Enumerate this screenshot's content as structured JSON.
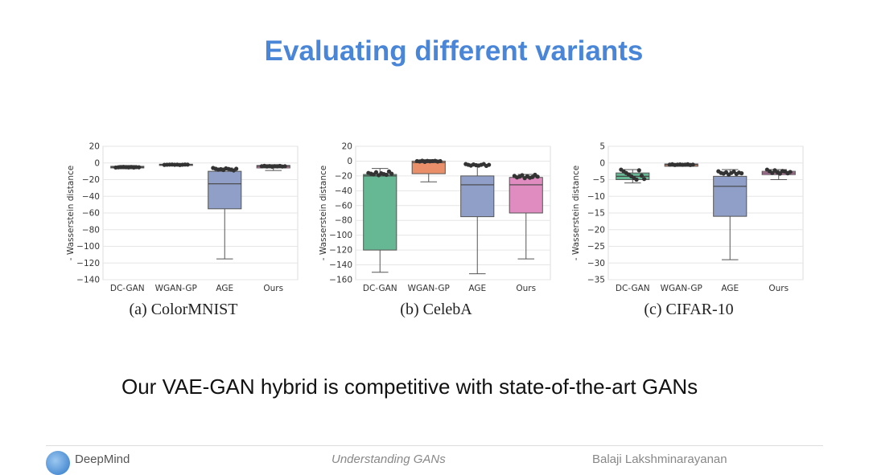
{
  "slide": {
    "title": "Evaluating different variants",
    "tagline": "Our VAE-GAN hybrid is competitive with state-of-the-art GANs",
    "footer": {
      "organization": "DeepMind",
      "talk_title": "Understanding GANs",
      "author": "Balaji Lakshminarayanan"
    }
  },
  "colors": {
    "title": "#4a86d8",
    "DC-GAN": "#66b894",
    "WGAN-GP": "#e9906a",
    "AGE": "#8f9fc7",
    "Ours": "#e08cc0"
  },
  "chart_data": [
    {
      "type": "boxplot",
      "caption": "(a) ColorMNIST",
      "ylabel": "- Wasserstein distance",
      "categories": [
        "DC-GAN",
        "WGAN-GP",
        "AGE",
        "Ours"
      ],
      "ylim": [
        -140,
        20
      ],
      "yticks": [
        20,
        0,
        -20,
        -40,
        -60,
        -80,
        -100,
        -120,
        -140
      ],
      "grid": true,
      "boxes": [
        {
          "name": "DC-GAN",
          "q1": -6,
          "median": -5,
          "q3": -4,
          "whisker_low": -7,
          "whisker_high": -3,
          "points": [
            -5.5,
            -5.2,
            -5,
            -4.8,
            -5.1,
            -5.3,
            -4.9,
            -5.4,
            -5,
            -5.2
          ]
        },
        {
          "name": "WGAN-GP",
          "q1": -3,
          "median": -2,
          "q3": -1.5,
          "whisker_low": -3.5,
          "whisker_high": -1,
          "points": [
            -2.3,
            -2.1,
            -2,
            -1.9,
            -2.2,
            -2,
            -2.4,
            -2.1,
            -1.9,
            -2
          ]
        },
        {
          "name": "AGE",
          "q1": -55,
          "median": -25,
          "q3": -10,
          "whisker_low": -115,
          "whisker_high": -6,
          "points": [
            -6,
            -7,
            -8,
            -7.5,
            -8.5,
            -6.5,
            -7.2,
            -8,
            -9,
            -7
          ]
        },
        {
          "name": "Ours",
          "q1": -6,
          "median": -4,
          "q3": -3,
          "whisker_low": -9,
          "whisker_high": -2,
          "points": [
            -4,
            -3.5,
            -4.2,
            -3.8,
            -4.5,
            -3.9,
            -4.1,
            -3.6,
            -4.3,
            -4
          ]
        }
      ]
    },
    {
      "type": "boxplot",
      "caption": "(b) CelebA",
      "ylabel": "- Wasserstein distance",
      "categories": [
        "DC-GAN",
        "WGAN-GP",
        "AGE",
        "Ours"
      ],
      "ylim": [
        -160,
        20
      ],
      "yticks": [
        20,
        0,
        -20,
        -40,
        -60,
        -80,
        -100,
        -120,
        -140,
        -160
      ],
      "grid": true,
      "boxes": [
        {
          "name": "DC-GAN",
          "q1": -120,
          "median": -20,
          "q3": -18,
          "whisker_low": -150,
          "whisker_high": -10,
          "points": [
            -16,
            -17,
            -18,
            -15,
            -19,
            -16.5,
            -17.5,
            -18.5,
            -14,
            -17
          ]
        },
        {
          "name": "WGAN-GP",
          "q1": -17,
          "median": -2,
          "q3": 0,
          "whisker_low": -28,
          "whisker_high": 2,
          "points": [
            0,
            -0.5,
            0.5,
            -1,
            0.2,
            -0.3,
            0,
            0.4,
            -0.6,
            0
          ]
        },
        {
          "name": "AGE",
          "q1": -75,
          "median": -32,
          "q3": -20,
          "whisker_low": -152,
          "whisker_high": -4,
          "points": [
            -4,
            -5,
            -6,
            -4.5,
            -5.5,
            -6,
            -5,
            -4,
            -6.5,
            -5
          ]
        },
        {
          "name": "Ours",
          "q1": -70,
          "median": -32,
          "q3": -22,
          "whisker_low": -132,
          "whisker_high": -18,
          "points": [
            -20,
            -22,
            -21,
            -19,
            -23,
            -20.5,
            -22.5,
            -21.5,
            -18.5,
            -21
          ]
        }
      ]
    },
    {
      "type": "boxplot",
      "caption": "(c) CIFAR-10",
      "ylabel": "- Wasserstein distance",
      "categories": [
        "DC-GAN",
        "WGAN-GP",
        "AGE",
        "Ours"
      ],
      "ylim": [
        -35,
        5
      ],
      "yticks": [
        5,
        0,
        -5,
        -10,
        -15,
        -20,
        -25,
        -30,
        -35
      ],
      "grid": true,
      "boxes": [
        {
          "name": "DC-GAN",
          "q1": -5,
          "median": -4,
          "q3": -3,
          "whisker_low": -6,
          "whisker_high": -2,
          "points": [
            -2,
            -2.5,
            -3,
            -3.5,
            -4,
            -4.5,
            -5,
            -2.2,
            -3.8,
            -4.8
          ]
        },
        {
          "name": "WGAN-GP",
          "q1": -1,
          "median": -0.5,
          "q3": -0.3,
          "whisker_low": -1,
          "whisker_high": -0.2,
          "points": [
            -0.5,
            -0.4,
            -0.6,
            -0.5,
            -0.45,
            -0.55,
            -0.5,
            -0.4,
            -0.6,
            -0.5
          ]
        },
        {
          "name": "AGE",
          "q1": -16,
          "median": -7,
          "q3": -4,
          "whisker_low": -29,
          "whisker_high": -2,
          "points": [
            -2.5,
            -3,
            -3.2,
            -2.8,
            -3.5,
            -3,
            -2.6,
            -3.3,
            -2.9,
            -3.1
          ]
        },
        {
          "name": "Ours",
          "q1": -3.5,
          "median": -3,
          "q3": -2.5,
          "whisker_low": -5,
          "whisker_high": -2,
          "points": [
            -2,
            -2.5,
            -3,
            -2.2,
            -2.8,
            -3.2,
            -2.4,
            -2.6,
            -3.1,
            -2.7
          ]
        }
      ]
    }
  ]
}
